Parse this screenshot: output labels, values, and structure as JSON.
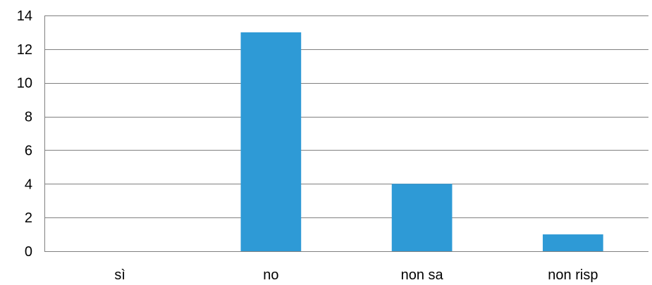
{
  "chart_data": {
    "type": "bar",
    "categories": [
      "sì",
      "no",
      "non sa",
      "non risp"
    ],
    "values": [
      0,
      13,
      4,
      1
    ],
    "ylim": [
      0,
      14
    ],
    "yticks": [
      0,
      2,
      4,
      6,
      8,
      10,
      12,
      14
    ],
    "grid": true,
    "legend": "none",
    "colors": {
      "bar": "#2e9ad6",
      "grid": "#808080",
      "text": "#000000"
    }
  }
}
